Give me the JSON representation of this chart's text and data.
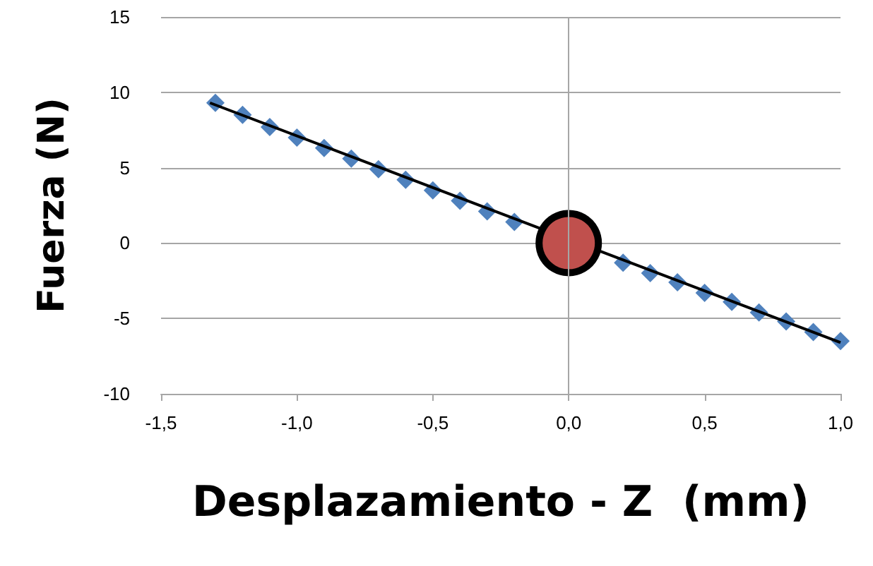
{
  "chart_data": {
    "type": "scatter",
    "xlabel": "Desplazamiento - Z  (mm)",
    "ylabel": "Fuerza (N)",
    "xlim": [
      -1.5,
      1.0
    ],
    "xticks": [
      {
        "value": -1.5,
        "label": "-1,5"
      },
      {
        "value": -1.0,
        "label": "-1,0"
      },
      {
        "value": -0.5,
        "label": "-0,5"
      },
      {
        "value": 0,
        "label": "0,0"
      },
      {
        "value": 0.5,
        "label": "0,5"
      },
      {
        "value": 1.0,
        "label": "1,0"
      }
    ],
    "ylim": [
      -10,
      15
    ],
    "yticks": [
      -10,
      -5,
      0,
      5,
      10,
      15
    ],
    "grid": "y",
    "ref_lines": [
      {
        "axis": "x",
        "value": 0,
        "color": "#a6a6a6"
      }
    ],
    "series": [
      {
        "marker": "diamond",
        "color": "#4f81bd",
        "x": [
          -1.3,
          -1.2,
          -1.1,
          -1.0,
          -0.9,
          -0.8,
          -0.7,
          -0.6,
          -0.5,
          -0.4,
          -0.3,
          -0.2,
          -0.1,
          0,
          0.1,
          0.2,
          0.3,
          0.4,
          0.5,
          0.6,
          0.7,
          0.8,
          0.9,
          1.0
        ],
        "values": [
          9.3,
          8.5,
          7.7,
          7.0,
          6.3,
          5.6,
          4.9,
          4.2,
          3.5,
          2.8,
          2.1,
          1.4,
          null,
          null,
          null,
          -1.3,
          -2.0,
          -2.6,
          -3.3,
          -3.9,
          -4.6,
          -5.2,
          -5.9,
          -6.5
        ]
      },
      {
        "type": "line",
        "marker": "none",
        "color": "#000000",
        "x": [
          -1.32,
          1.0
        ],
        "values": [
          9.3,
          -6.6
        ]
      },
      {
        "marker": "circle",
        "color": "#c0504d",
        "x": [
          0
        ],
        "values": [
          0
        ]
      }
    ]
  }
}
